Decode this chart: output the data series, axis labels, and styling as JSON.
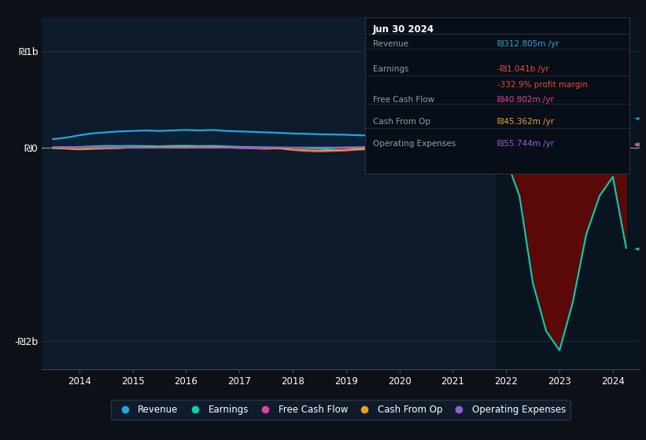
{
  "background_color": "#0d1117",
  "plot_bg_color": "#0d1b2a",
  "years": [
    2013.5,
    2013.75,
    2014.0,
    2014.25,
    2014.5,
    2014.75,
    2015.0,
    2015.25,
    2015.5,
    2015.75,
    2016.0,
    2016.25,
    2016.5,
    2016.75,
    2017.0,
    2017.25,
    2017.5,
    2017.75,
    2018.0,
    2018.25,
    2018.5,
    2018.75,
    2019.0,
    2019.25,
    2019.5,
    2019.75,
    2020.0,
    2020.25,
    2020.5,
    2020.75,
    2021.0,
    2021.25,
    2021.5,
    2021.75,
    2022.0,
    2022.25,
    2022.5,
    2022.75,
    2023.0,
    2023.25,
    2023.5,
    2023.75,
    2024.0,
    2024.25
  ],
  "revenue": [
    90,
    105,
    130,
    150,
    160,
    170,
    175,
    180,
    175,
    180,
    185,
    180,
    185,
    175,
    170,
    165,
    160,
    155,
    148,
    145,
    140,
    138,
    135,
    130,
    128,
    125,
    120,
    118,
    115,
    112,
    115,
    118,
    120,
    130,
    350,
    750,
    1100,
    900,
    750,
    630,
    520,
    420,
    320,
    312
  ],
  "earnings": [
    5,
    8,
    10,
    15,
    20,
    18,
    20,
    18,
    15,
    20,
    22,
    18,
    20,
    15,
    10,
    8,
    5,
    3,
    0,
    -5,
    -10,
    -20,
    -25,
    -15,
    -10,
    -15,
    -20,
    -25,
    -30,
    -25,
    -25,
    -30,
    -35,
    -45,
    -120,
    -500,
    -1400,
    -1900,
    -2100,
    -1600,
    -900,
    -500,
    -300,
    -1041
  ],
  "free_cash_flow": [
    5,
    8,
    10,
    8,
    12,
    5,
    8,
    5,
    2,
    8,
    10,
    5,
    8,
    2,
    -5,
    -8,
    -12,
    -5,
    -25,
    -35,
    -40,
    -35,
    -30,
    -20,
    -15,
    -18,
    -22,
    -18,
    -12,
    -8,
    -10,
    -15,
    -18,
    -15,
    -20,
    -15,
    -10,
    -12,
    -15,
    0,
    20,
    30,
    40,
    40
  ],
  "cash_from_op": [
    -5,
    -10,
    -18,
    -12,
    -8,
    -5,
    5,
    8,
    10,
    12,
    15,
    10,
    12,
    8,
    5,
    2,
    -5,
    -8,
    -18,
    -25,
    -30,
    -28,
    -20,
    -15,
    -10,
    -12,
    -15,
    -12,
    -8,
    -5,
    -5,
    -8,
    5,
    8,
    -10,
    -8,
    -5,
    -10,
    -15,
    10,
    30,
    40,
    45,
    45
  ],
  "operating_expenses": [
    3,
    3,
    3,
    3,
    3,
    3,
    3,
    3,
    3,
    3,
    3,
    3,
    3,
    3,
    3,
    3,
    3,
    3,
    3,
    3,
    3,
    3,
    5,
    8,
    10,
    15,
    20,
    25,
    28,
    30,
    32,
    35,
    38,
    40,
    42,
    44,
    46,
    48,
    50,
    52,
    54,
    55,
    55,
    55
  ],
  "revenue_color": "#1ea8e0",
  "earnings_color": "#00d4b0",
  "fcf_color": "#e040a0",
  "cashop_color": "#e8a020",
  "opex_color": "#9060d0",
  "revenue_fill": "#0a2035",
  "earnings_fill_neg": "#5a0808",
  "ylim_min": -2300,
  "ylim_max": 1350,
  "ytick_vals": [
    -2000,
    0,
    1000
  ],
  "ytick_labels": [
    "-₪2b",
    "₪0",
    "₪1b"
  ],
  "xlabel_years": [
    2014,
    2015,
    2016,
    2017,
    2018,
    2019,
    2020,
    2021,
    2022,
    2023,
    2024
  ],
  "legend_items": [
    "Revenue",
    "Earnings",
    "Free Cash Flow",
    "Cash From Op",
    "Operating Expenses"
  ],
  "legend_colors": [
    "#1ea8e0",
    "#00d4b0",
    "#e040a0",
    "#e8a020",
    "#9060d0"
  ],
  "info_box": {
    "date": "Jun 30 2024",
    "rows": [
      {
        "label": "Revenue",
        "val": "₪312.805m /yr",
        "val_color": "#1ea8e0",
        "extra": null,
        "extra_color": null
      },
      {
        "label": "Earnings",
        "val": "-₪1.041b /yr",
        "val_color": "#e05030",
        "extra": "-332.9% profit margin",
        "extra_color": "#e05030"
      },
      {
        "label": "Free Cash Flow",
        "val": "₪40.802m /yr",
        "val_color": "#e040a0",
        "extra": null,
        "extra_color": null
      },
      {
        "label": "Cash From Op",
        "val": "₪45.362m /yr",
        "val_color": "#e8a020",
        "extra": null,
        "extra_color": null
      },
      {
        "label": "Operating Expenses",
        "val": "₪55.744m /yr",
        "val_color": "#9060d0",
        "extra": null,
        "extra_color": null
      }
    ]
  }
}
